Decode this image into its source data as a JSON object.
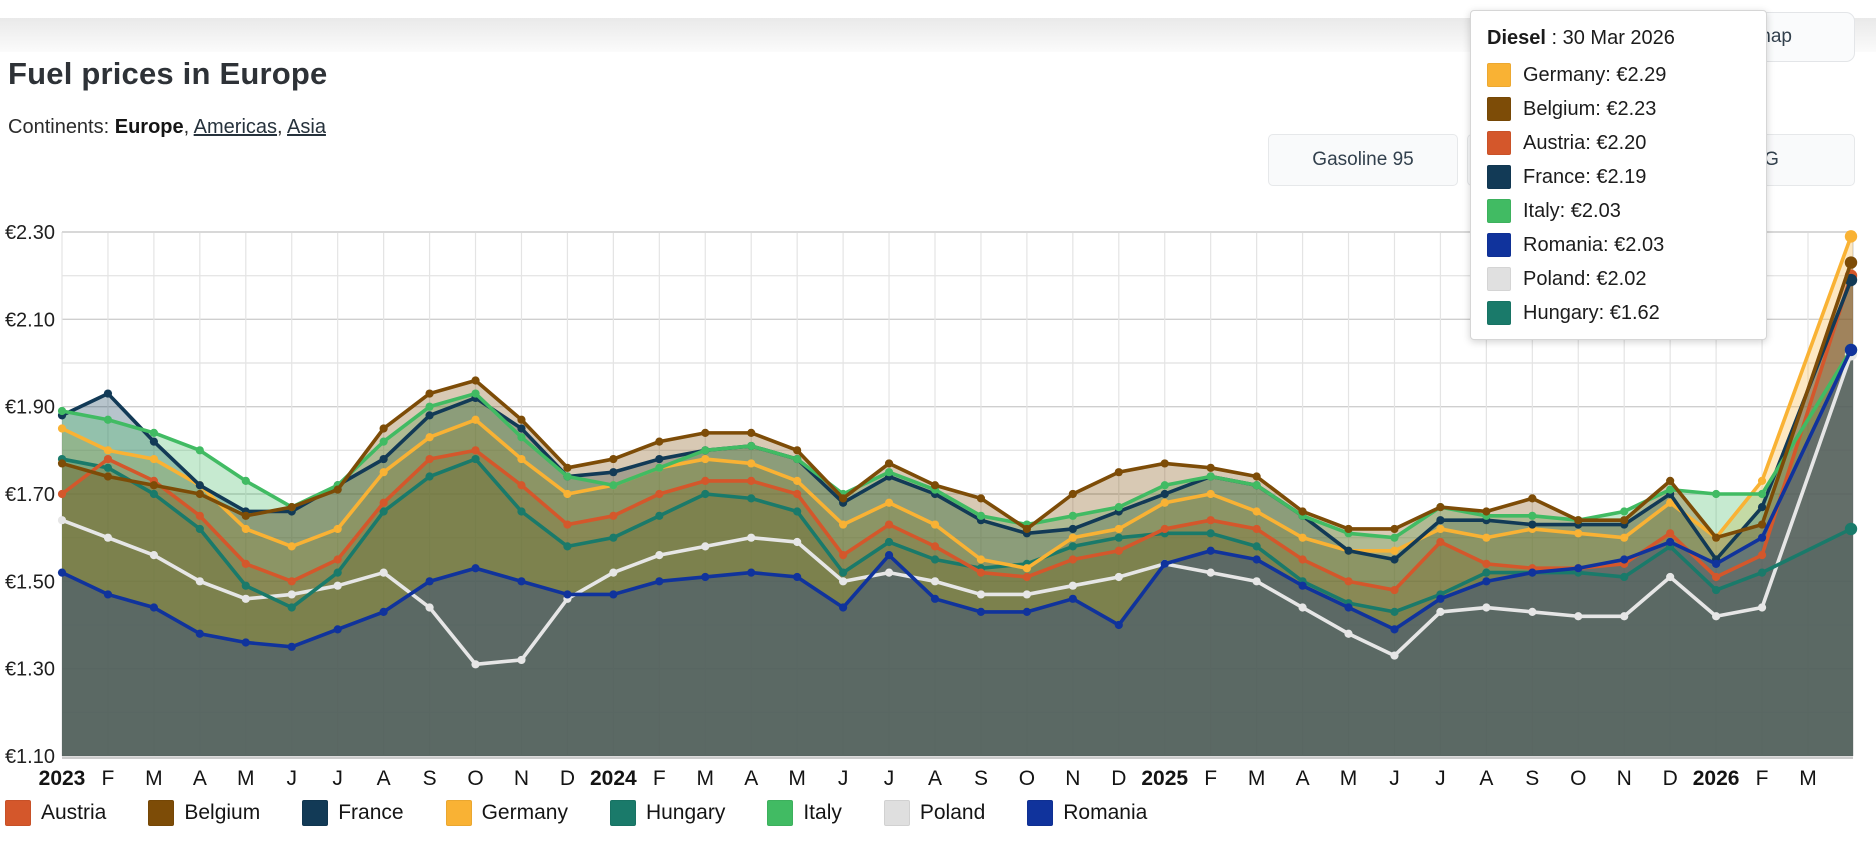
{
  "page": {
    "title": "Fuel prices in Europe",
    "continents_label": "Continents:",
    "continents": [
      {
        "label": "Europe",
        "active": true
      },
      {
        "label": "Americas",
        "active": false
      },
      {
        "label": "Asia",
        "active": false
      }
    ]
  },
  "toolbar": {
    "gasoline95_label": "Gasoline 95",
    "hidden_button_label": "",
    "partial_button_visible_label": "G",
    "map_button_visible_label": "map"
  },
  "tooltip": {
    "fuel": "Diesel",
    "date": "30 Mar 2026",
    "rows": [
      {
        "country": "Germany",
        "value": "€2.29",
        "color": "#f9b234"
      },
      {
        "country": "Belgium",
        "value": "€2.23",
        "color": "#7d4c07"
      },
      {
        "country": "Austria",
        "value": "€2.20",
        "color": "#d4572b"
      },
      {
        "country": "France",
        "value": "€2.19",
        "color": "#123a56"
      },
      {
        "country": "Italy",
        "value": "€2.03",
        "color": "#41bb63"
      },
      {
        "country": "Romania",
        "value": "€2.03",
        "color": "#10339c"
      },
      {
        "country": "Poland",
        "value": "€2.02",
        "color": "#e0e0e0"
      },
      {
        "country": "Hungary",
        "value": "€1.62",
        "color": "#1a7a6a"
      }
    ]
  },
  "legend": {
    "items": [
      {
        "label": "Austria",
        "color": "#d4572b"
      },
      {
        "label": "Belgium",
        "color": "#7d4c07"
      },
      {
        "label": "France",
        "color": "#123a56"
      },
      {
        "label": "Germany",
        "color": "#f9b234"
      },
      {
        "label": "Hungary",
        "color": "#1a7a6a"
      },
      {
        "label": "Italy",
        "color": "#41bb63"
      },
      {
        "label": "Poland",
        "color": "#dfdfdf"
      },
      {
        "label": "Romania",
        "color": "#10339c"
      }
    ]
  },
  "chart_data": {
    "type": "area",
    "title": "Fuel prices in Europe — Diesel",
    "currency": "EUR",
    "ylim": [
      1.1,
      2.3
    ],
    "grid": true,
    "legend_position": "bottom",
    "y_tick_labels": [
      "€2.30",
      "€2.10",
      "€1.90",
      "€1.70",
      "€1.50",
      "€1.30",
      "€1.10"
    ],
    "x": [
      "2023",
      "F",
      "M",
      "A",
      "M",
      "J",
      "J",
      "A",
      "S",
      "O",
      "N",
      "D",
      "2024",
      "F",
      "M",
      "A",
      "M",
      "J",
      "J",
      "A",
      "S",
      "O",
      "N",
      "D",
      "2025",
      "F",
      "M",
      "A",
      "M",
      "J",
      "J",
      "A",
      "S",
      "O",
      "N",
      "D",
      "2026",
      "F",
      "M"
    ],
    "last_point_date": "30 Mar 2026",
    "series": [
      {
        "name": "Poland",
        "color": "#e2e2e2",
        "line_color": "#e6e6e6",
        "values": [
          1.64,
          1.6,
          1.56,
          1.5,
          1.46,
          1.47,
          1.49,
          1.52,
          1.44,
          1.31,
          1.32,
          1.46,
          1.52,
          1.56,
          1.58,
          1.6,
          1.59,
          1.5,
          1.52,
          1.5,
          1.47,
          1.47,
          1.49,
          1.51,
          1.54,
          1.52,
          1.5,
          1.44,
          1.38,
          1.33,
          1.43,
          1.44,
          1.43,
          1.42,
          1.42,
          1.51,
          1.42,
          1.44,
          2.02
        ]
      },
      {
        "name": "Hungary",
        "color": "#1a7a6a",
        "line_color": "#1a7a6a",
        "values": [
          1.78,
          1.76,
          1.7,
          1.62,
          1.49,
          1.44,
          1.52,
          1.66,
          1.74,
          1.78,
          1.66,
          1.58,
          1.6,
          1.65,
          1.7,
          1.69,
          1.66,
          1.52,
          1.59,
          1.55,
          1.53,
          1.54,
          1.58,
          1.6,
          1.61,
          1.61,
          1.58,
          1.5,
          1.45,
          1.43,
          1.47,
          1.52,
          1.52,
          1.52,
          1.51,
          1.58,
          1.48,
          1.52,
          1.62
        ]
      },
      {
        "name": "Austria",
        "color": "#d4572b",
        "line_color": "#d4572b",
        "values": [
          1.7,
          1.78,
          1.73,
          1.65,
          1.54,
          1.5,
          1.55,
          1.68,
          1.78,
          1.8,
          1.72,
          1.63,
          1.65,
          1.7,
          1.73,
          1.73,
          1.7,
          1.56,
          1.63,
          1.58,
          1.52,
          1.51,
          1.55,
          1.57,
          1.62,
          1.64,
          1.62,
          1.55,
          1.5,
          1.48,
          1.59,
          1.54,
          1.53,
          1.53,
          1.54,
          1.61,
          1.51,
          1.56,
          2.2
        ]
      },
      {
        "name": "Germany",
        "color": "#f9b234",
        "line_color": "#f9b234",
        "values": [
          1.85,
          1.8,
          1.78,
          1.72,
          1.62,
          1.58,
          1.62,
          1.75,
          1.83,
          1.87,
          1.78,
          1.7,
          1.72,
          1.76,
          1.78,
          1.77,
          1.73,
          1.63,
          1.68,
          1.63,
          1.55,
          1.53,
          1.6,
          1.62,
          1.68,
          1.7,
          1.66,
          1.6,
          1.57,
          1.57,
          1.62,
          1.6,
          1.62,
          1.61,
          1.6,
          1.68,
          1.6,
          1.73,
          2.29
        ]
      },
      {
        "name": "France",
        "color": "#123a56",
        "line_color": "#123a56",
        "values": [
          1.88,
          1.93,
          1.82,
          1.72,
          1.66,
          1.66,
          1.72,
          1.78,
          1.88,
          1.92,
          1.85,
          1.74,
          1.75,
          1.78,
          1.8,
          1.81,
          1.78,
          1.68,
          1.74,
          1.7,
          1.64,
          1.61,
          1.62,
          1.66,
          1.7,
          1.74,
          1.72,
          1.65,
          1.57,
          1.55,
          1.64,
          1.64,
          1.63,
          1.63,
          1.63,
          1.7,
          1.55,
          1.67,
          2.19
        ]
      },
      {
        "name": "Italy",
        "color": "#41bb63",
        "line_color": "#41bb63",
        "values": [
          1.89,
          1.87,
          1.84,
          1.8,
          1.73,
          1.67,
          1.72,
          1.82,
          1.9,
          1.93,
          1.83,
          1.74,
          1.72,
          1.76,
          1.8,
          1.81,
          1.78,
          1.7,
          1.75,
          1.71,
          1.65,
          1.63,
          1.65,
          1.67,
          1.72,
          1.74,
          1.72,
          1.65,
          1.61,
          1.6,
          1.67,
          1.65,
          1.65,
          1.64,
          1.66,
          1.71,
          1.7,
          1.7,
          2.03
        ]
      },
      {
        "name": "Belgium",
        "color": "#7d4c07",
        "line_color": "#7d4c07",
        "values": [
          1.77,
          1.74,
          1.72,
          1.7,
          1.65,
          1.67,
          1.71,
          1.85,
          1.93,
          1.96,
          1.87,
          1.76,
          1.78,
          1.82,
          1.84,
          1.84,
          1.8,
          1.69,
          1.77,
          1.72,
          1.69,
          1.62,
          1.7,
          1.75,
          1.77,
          1.76,
          1.74,
          1.66,
          1.62,
          1.62,
          1.67,
          1.66,
          1.69,
          1.64,
          1.64,
          1.73,
          1.6,
          1.63,
          2.23
        ]
      },
      {
        "name": "Romania",
        "color": "#10339c",
        "line_color": "#10339c",
        "values": [
          1.52,
          1.47,
          1.44,
          1.38,
          1.36,
          1.35,
          1.39,
          1.43,
          1.5,
          1.53,
          1.5,
          1.47,
          1.47,
          1.5,
          1.51,
          1.52,
          1.51,
          1.44,
          1.56,
          1.46,
          1.43,
          1.43,
          1.46,
          1.4,
          1.54,
          1.57,
          1.55,
          1.49,
          1.44,
          1.39,
          1.46,
          1.5,
          1.52,
          1.53,
          1.55,
          1.59,
          1.54,
          1.6,
          2.03
        ]
      }
    ]
  }
}
